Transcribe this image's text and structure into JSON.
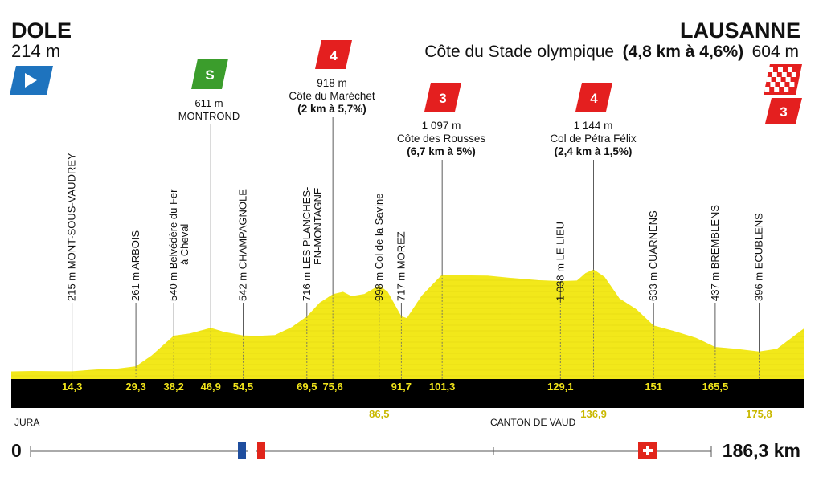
{
  "stage": {
    "start": {
      "name": "DOLE",
      "altitude": "214 m"
    },
    "finish": {
      "name": "LAUSANNE",
      "altitude": "604 m",
      "climb_name": "Côte du Stade olympique",
      "climb_detail": "(4,8 km à 4,6%)",
      "category": "3"
    },
    "sprint": {
      "altitude": "611 m",
      "name": "MONTROND",
      "label": "S"
    }
  },
  "colors": {
    "profile_fill": "#f2e81a",
    "profile_stripe": "#d9cd0e",
    "band": "#000000",
    "km_text": "#f1e41a",
    "km_text_below": "#c9b800",
    "climb_badge": "#e41f1f",
    "sprint_badge": "#3b9d2c",
    "start_flag": "#1e73be",
    "france_blue": "#1f4e9e",
    "france_red": "#e1251b",
    "swiss_red": "#e1251b"
  },
  "climbs": [
    {
      "category": "4",
      "altitude": "918 m",
      "name": "Côte du Maréchet",
      "detail": "(2 km à 5,7%)"
    },
    {
      "category": "3",
      "altitude": "1 097 m",
      "name": "Côte des Rousses",
      "detail": "(6,7 km à 5%)"
    },
    {
      "category": "4",
      "altitude": "1 144 m",
      "name": "Col de Pétra Félix",
      "detail": "(2,4 km à 1,5%)"
    }
  ],
  "regions": {
    "left": "JURA",
    "right": "CANTON DE VAUD"
  },
  "scale": {
    "start": "0",
    "end": "186,3 km"
  },
  "icons": {
    "start": "start-flag-icon",
    "sprint": "sprint-icon",
    "finish": "finish-flag-icon",
    "france": "france-flag-icon",
    "switzerland": "swiss-flag-icon"
  },
  "chart_data": {
    "type": "area",
    "x_unit": "km",
    "y_unit": "m",
    "xlim": [
      0,
      186.3
    ],
    "profile": [
      [
        0,
        214
      ],
      [
        5,
        218
      ],
      [
        10,
        216
      ],
      [
        14.3,
        215
      ],
      [
        20,
        232
      ],
      [
        25,
        240
      ],
      [
        29.3,
        261
      ],
      [
        33,
        360
      ],
      [
        38.2,
        540
      ],
      [
        42,
        560
      ],
      [
        46.9,
        611
      ],
      [
        50,
        575
      ],
      [
        54.5,
        542
      ],
      [
        58,
        538
      ],
      [
        62,
        545
      ],
      [
        66,
        620
      ],
      [
        69.5,
        716
      ],
      [
        72.5,
        840
      ],
      [
        75.6,
        918
      ],
      [
        78,
        940
      ],
      [
        80,
        900
      ],
      [
        83,
        920
      ],
      [
        86.5,
        998
      ],
      [
        88.5,
        940
      ],
      [
        91.7,
        717
      ],
      [
        93,
        700
      ],
      [
        96.5,
        905
      ],
      [
        101.3,
        1097
      ],
      [
        106,
        1090
      ],
      [
        112,
        1087
      ],
      [
        118,
        1065
      ],
      [
        124,
        1045
      ],
      [
        129.1,
        1038
      ],
      [
        133,
        1042
      ],
      [
        135,
        1110
      ],
      [
        136.9,
        1144
      ],
      [
        139.5,
        1075
      ],
      [
        143,
        880
      ],
      [
        147,
        780
      ],
      [
        151,
        633
      ],
      [
        156,
        580
      ],
      [
        161,
        520
      ],
      [
        165.5,
        437
      ],
      [
        170,
        422
      ],
      [
        175.8,
        396
      ],
      [
        180,
        420
      ],
      [
        186.3,
        604
      ]
    ],
    "waypoints": [
      {
        "km": "14,3",
        "alt": "215 m",
        "name": "MONT-SOUS-VAUDREY"
      },
      {
        "km": "29,3",
        "alt": "261 m",
        "name": "ARBOIS"
      },
      {
        "km": "38,2",
        "alt": "540 m",
        "name": "Belvédère du Fer",
        "name2": "à Cheval"
      },
      {
        "km": "46,9",
        "alt": "611 m",
        "name": "MONTROND"
      },
      {
        "km": "54,5",
        "alt": "542 m",
        "name": "CHAMPAGNOLE"
      },
      {
        "km": "69,5",
        "alt": "716 m",
        "name": "LES PLANCHES-",
        "name2": "EN-MONTAGNE"
      },
      {
        "km": "75,6",
        "alt": "918 m",
        "name": "Côte du Maréchet"
      },
      {
        "km": "86,5",
        "alt": "998 m",
        "name": "Col de la Savine"
      },
      {
        "km": "91,7",
        "alt": "717 m",
        "name": "MOREZ"
      },
      {
        "km": "101,3",
        "alt": "1 097 m",
        "name": "Côte des Rousses"
      },
      {
        "km": "129,1",
        "alt": "1 038 m",
        "name": "LE LIEU"
      },
      {
        "km": "136,9",
        "alt": "1 144 m",
        "name": "Col de Pétra Félix"
      },
      {
        "km": "151",
        "alt": "633 m",
        "name": "CUARNENS"
      },
      {
        "km": "165,5",
        "alt": "437 m",
        "name": "BREMBLENS"
      },
      {
        "km": "175,8",
        "alt": "396 m",
        "name": "ECUBLENS"
      }
    ]
  }
}
